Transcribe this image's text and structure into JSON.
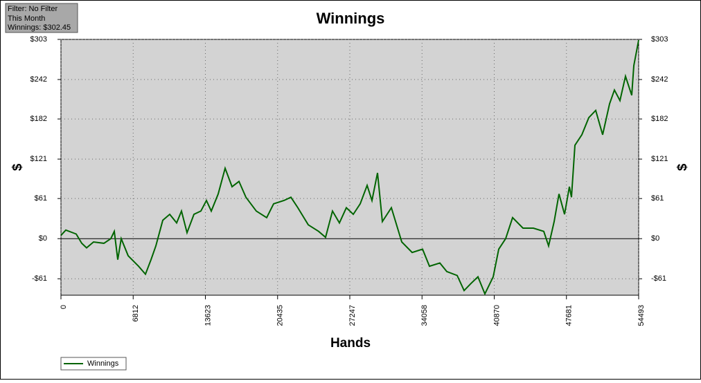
{
  "info": {
    "filter": "Filter: No Filter",
    "period": "This Month",
    "winnings": "Winnings: $302.45"
  },
  "chart_data": {
    "type": "line",
    "title": "Winnings",
    "x_label": "Hands",
    "y_label": "$",
    "x": [
      0,
      457,
      1437,
      1960,
      2418,
      3071,
      4051,
      4705,
      5031,
      5358,
      5684,
      6338,
      7318,
      7971,
      8494,
      8951,
      9605,
      10258,
      10912,
      11369,
      11892,
      12545,
      13199,
      13721,
      14179,
      14832,
      15486,
      16139,
      16793,
      17446,
      18426,
      19406,
      20060,
      21040,
      21693,
      22347,
      23327,
      24307,
      24960,
      25613,
      26267,
      26920,
      27574,
      28227,
      28881,
      29338,
      29861,
      30318,
      31168,
      32148,
      33128,
      34108,
      34761,
      35741,
      36394,
      37374,
      38028,
      38681,
      39334,
      39988,
      40772,
      41295,
      41948,
      42601,
      43582,
      44562,
      45542,
      46000,
      46522,
      46979,
      47502,
      47960,
      48156,
      48482,
      49136,
      49789,
      50443,
      51096,
      51749,
      52207,
      52730,
      53252,
      53840,
      54036,
      54493
    ],
    "series": [
      {
        "name": "Winnings",
        "color": "#006400",
        "values": [
          5,
          13,
          7,
          -7,
          -14,
          -5,
          -7,
          0,
          11,
          -32,
          0,
          -26,
          -42,
          -54,
          -32,
          -11,
          28,
          37,
          24,
          42,
          9,
          37,
          42,
          58,
          42,
          68,
          107,
          79,
          87,
          63,
          42,
          32,
          53,
          58,
          63,
          47,
          21,
          11,
          2,
          42,
          24,
          47,
          37,
          53,
          81,
          58,
          100,
          26,
          47,
          -5,
          -21,
          -16,
          -42,
          -37,
          -50,
          -56,
          -79,
          -68,
          -58,
          -84,
          -58,
          -16,
          0,
          32,
          16,
          16,
          11,
          -11,
          26,
          68,
          37,
          79,
          63,
          142,
          158,
          184,
          195,
          158,
          205,
          226,
          210,
          247,
          218,
          263,
          302
        ]
      }
    ],
    "xlim": [
      0,
      54493
    ],
    "xticks": [
      0,
      6812,
      13623,
      20435,
      27247,
      34058,
      40870,
      47681,
      54493
    ],
    "ylim": [
      -86,
      303
    ],
    "yticks": [
      {
        "value": -61,
        "label": "-$61"
      },
      {
        "value": 0,
        "label": "$0"
      },
      {
        "value": 61,
        "label": "$61"
      },
      {
        "value": 121,
        "label": "$121"
      },
      {
        "value": 182,
        "label": "$182"
      },
      {
        "value": 242,
        "label": "$242"
      },
      {
        "value": 303,
        "label": "$303"
      }
    ],
    "grid": true,
    "plot_background": "#d3d3d3"
  }
}
